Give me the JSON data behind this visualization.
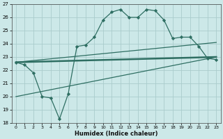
{
  "xlabel": "Humidex (Indice chaleur)",
  "background_color": "#cce8e8",
  "grid_color": "#aacccc",
  "line_color": "#2e6e62",
  "xlim": [
    -0.5,
    23.5
  ],
  "ylim": [
    18,
    27
  ],
  "yticks": [
    18,
    19,
    20,
    21,
    22,
    23,
    24,
    25,
    26,
    27
  ],
  "xticks": [
    0,
    1,
    2,
    3,
    4,
    5,
    6,
    7,
    8,
    9,
    10,
    11,
    12,
    13,
    14,
    15,
    16,
    17,
    18,
    19,
    20,
    21,
    22,
    23
  ],
  "series": [
    {
      "x": [
        0,
        1,
        2,
        3,
        4,
        5,
        6,
        7,
        8,
        9,
        10,
        11,
        12,
        13,
        14,
        15,
        16,
        17,
        18,
        19,
        20,
        21,
        22,
        23
      ],
      "y": [
        22.6,
        22.4,
        21.8,
        20.0,
        19.9,
        18.3,
        20.2,
        23.8,
        23.9,
        24.5,
        25.8,
        26.4,
        26.6,
        26.0,
        26.0,
        26.6,
        26.5,
        25.8,
        24.4,
        24.5,
        24.5,
        23.8,
        22.9,
        22.8
      ],
      "marker": "D",
      "markersize": 2.2,
      "linewidth": 0.9
    },
    {
      "x": [
        0,
        23
      ],
      "y": [
        22.6,
        23.0
      ],
      "marker": null,
      "linewidth": 1.8
    },
    {
      "x": [
        0,
        23
      ],
      "y": [
        22.6,
        24.1
      ],
      "marker": null,
      "linewidth": 0.9
    },
    {
      "x": [
        0,
        23
      ],
      "y": [
        20.0,
        23.0
      ],
      "marker": null,
      "linewidth": 0.9
    }
  ]
}
